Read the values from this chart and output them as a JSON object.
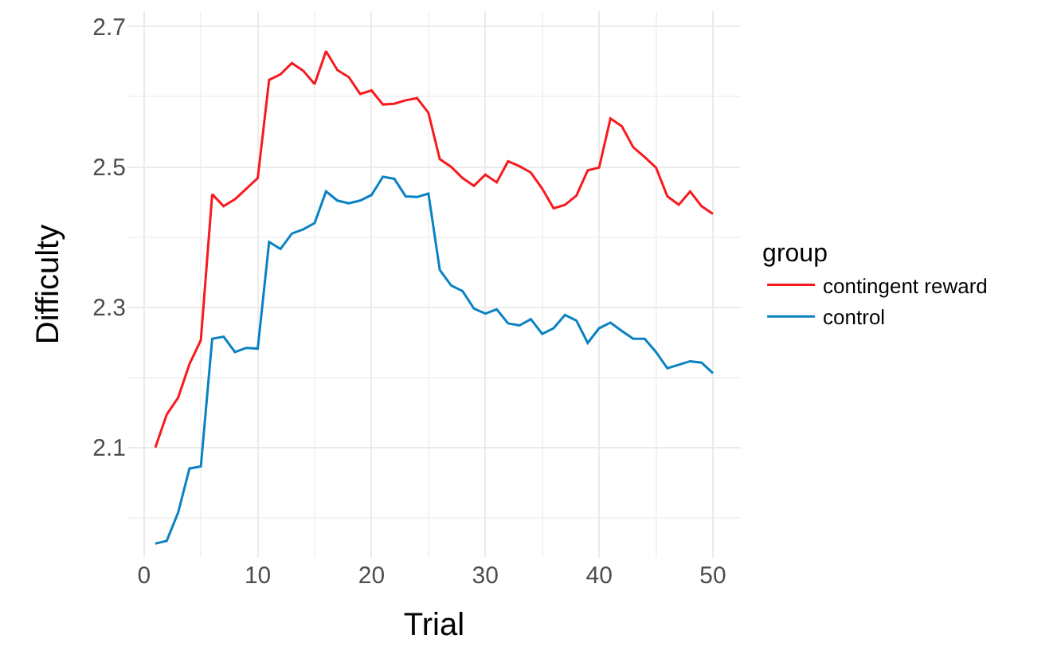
{
  "chart_data": {
    "type": "line",
    "xlabel": "Trial",
    "ylabel": "Difficulty",
    "legend_title": "group",
    "x": [
      1,
      2,
      3,
      4,
      5,
      6,
      7,
      8,
      9,
      10,
      11,
      12,
      13,
      14,
      15,
      16,
      17,
      18,
      19,
      20,
      21,
      22,
      23,
      24,
      25,
      26,
      27,
      28,
      29,
      30,
      31,
      32,
      33,
      34,
      35,
      36,
      37,
      38,
      39,
      40,
      41,
      42,
      43,
      44,
      45,
      46,
      47,
      48,
      49,
      50
    ],
    "series": [
      {
        "name": "contingent reward",
        "color": "#f8191e",
        "values": [
          2.1,
          2.147,
          2.171,
          2.219,
          2.253,
          2.461,
          2.444,
          2.454,
          2.469,
          2.484,
          2.624,
          2.632,
          2.648,
          2.637,
          2.618,
          2.665,
          2.638,
          2.628,
          2.604,
          2.609,
          2.589,
          2.59,
          2.595,
          2.598,
          2.577,
          2.511,
          2.5,
          2.484,
          2.473,
          2.489,
          2.478,
          2.508,
          2.501,
          2.492,
          2.469,
          2.441,
          2.446,
          2.459,
          2.495,
          2.499,
          2.569,
          2.558,
          2.528,
          2.514,
          2.499,
          2.458,
          2.446,
          2.465,
          2.444,
          2.433
        ]
      },
      {
        "name": "control",
        "color": "#0a82c2",
        "values": [
          1.963,
          1.967,
          2.007,
          2.07,
          2.073,
          2.255,
          2.258,
          2.236,
          2.242,
          2.241,
          2.393,
          2.383,
          2.405,
          2.411,
          2.42,
          2.465,
          2.452,
          2.448,
          2.452,
          2.46,
          2.486,
          2.483,
          2.458,
          2.457,
          2.462,
          2.353,
          2.331,
          2.323,
          2.298,
          2.291,
          2.297,
          2.277,
          2.274,
          2.283,
          2.262,
          2.27,
          2.289,
          2.281,
          2.249,
          2.27,
          2.278,
          2.266,
          2.255,
          2.255,
          2.236,
          2.213,
          2.218,
          2.223,
          2.221,
          2.206
        ]
      }
    ],
    "xlim": [
      -1.45,
      52.45
    ],
    "xticks": [
      0,
      10,
      20,
      30,
      40,
      50
    ],
    "ylim": [
      1.943,
      2.722
    ],
    "yticks": [
      2.1,
      2.3,
      2.5,
      2.7
    ],
    "grid": true,
    "legend": "right",
    "marker": "none",
    "line_style": "solid"
  }
}
